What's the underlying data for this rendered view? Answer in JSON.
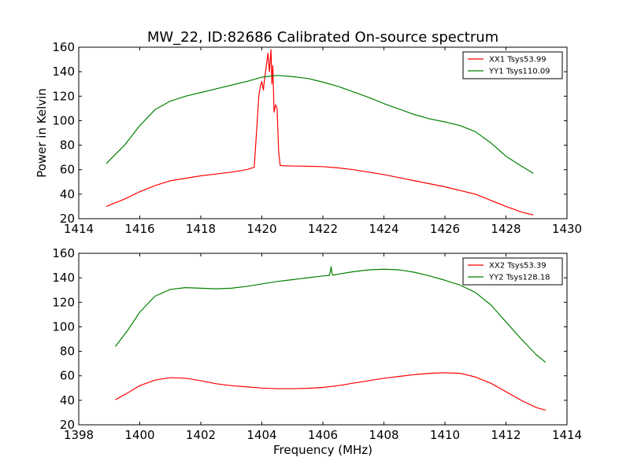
{
  "chart_data": [
    {
      "type": "line",
      "title": "MW_22, ID:82686 Calibrated On-source spectrum",
      "xlabel": "",
      "ylabel": "Power in Kelvin",
      "xlim": [
        1414,
        1430
      ],
      "ylim": [
        20,
        160
      ],
      "xticks": [
        1414,
        1416,
        1418,
        1420,
        1422,
        1424,
        1426,
        1428,
        1430
      ],
      "yticks": [
        20,
        40,
        60,
        80,
        100,
        120,
        140,
        160
      ],
      "legend_position": "top-right",
      "series": [
        {
          "name": "XX1 Tsys53.99",
          "color": "#ff0000",
          "x": [
            1414.9,
            1415.5,
            1416.0,
            1416.5,
            1417.0,
            1417.5,
            1418.0,
            1418.5,
            1419.0,
            1419.5,
            1419.75,
            1419.85,
            1419.9,
            1419.95,
            1420.0,
            1420.05,
            1420.1,
            1420.15,
            1420.2,
            1420.25,
            1420.3,
            1420.33,
            1420.36,
            1420.4,
            1420.45,
            1420.5,
            1420.55,
            1420.6,
            1420.7,
            1421.0,
            1421.5,
            1422.0,
            1422.5,
            1423.0,
            1423.5,
            1424.0,
            1424.5,
            1425.0,
            1425.5,
            1426.0,
            1426.5,
            1427.0,
            1427.5,
            1428.0,
            1428.5,
            1428.9
          ],
          "y": [
            30,
            36,
            42,
            47,
            51,
            53,
            55,
            56.5,
            58,
            60,
            62,
            100,
            120,
            128,
            132,
            125,
            136,
            145,
            155,
            140,
            158,
            130,
            145,
            107,
            113,
            110,
            75,
            63.5,
            63.2,
            63,
            62.8,
            62.5,
            61.5,
            60,
            58,
            56,
            53.5,
            51,
            48.5,
            46,
            43,
            40,
            35,
            30,
            25.5,
            23
          ]
        },
        {
          "name": "YY1 Tsys110.09",
          "color": "#008000",
          "x": [
            1414.9,
            1415.5,
            1416.0,
            1416.5,
            1417.0,
            1417.5,
            1418.0,
            1418.5,
            1419.0,
            1419.5,
            1420.0,
            1420.5,
            1421.0,
            1421.5,
            1422.0,
            1422.5,
            1423.0,
            1423.5,
            1424.0,
            1424.5,
            1425.0,
            1425.5,
            1426.0,
            1426.5,
            1427.0,
            1427.5,
            1428.0,
            1428.5,
            1428.9
          ],
          "y": [
            65,
            80,
            96,
            109,
            116,
            120,
            123,
            126,
            129,
            132,
            135.5,
            137,
            136,
            134.5,
            131.5,
            128,
            123.5,
            119,
            114,
            109.5,
            105,
            101.5,
            99,
            96,
            91,
            82,
            71,
            63,
            57
          ]
        }
      ]
    },
    {
      "type": "line",
      "title": "",
      "xlabel": "Frequency (MHz)",
      "ylabel": "",
      "xlim": [
        1398,
        1414
      ],
      "ylim": [
        20,
        160
      ],
      "xticks": [
        1398,
        1400,
        1402,
        1404,
        1406,
        1408,
        1410,
        1412,
        1414
      ],
      "yticks": [
        20,
        40,
        60,
        80,
        100,
        120,
        140,
        160
      ],
      "legend_position": "top-right",
      "series": [
        {
          "name": "XX2 Tsys53.39",
          "color": "#ff0000",
          "x": [
            1399.2,
            1399.6,
            1400.0,
            1400.5,
            1401.0,
            1401.5,
            1402.0,
            1402.5,
            1403.0,
            1403.5,
            1404.0,
            1404.5,
            1405.0,
            1405.5,
            1406.0,
            1406.5,
            1407.0,
            1407.5,
            1408.0,
            1408.5,
            1409.0,
            1409.5,
            1410.0,
            1410.5,
            1411.0,
            1411.5,
            1412.0,
            1412.5,
            1413.0,
            1413.3
          ],
          "y": [
            40.5,
            46,
            52,
            56.5,
            58.5,
            58,
            56,
            53.5,
            52,
            51,
            50,
            49.5,
            49.5,
            49.8,
            50.5,
            52,
            54,
            56,
            58,
            59.5,
            61,
            62,
            62.5,
            62,
            59,
            54,
            47,
            40,
            34,
            32
          ]
        },
        {
          "name": "YY2 Tsys128.18",
          "color": "#008000",
          "x": [
            1399.2,
            1399.6,
            1400.0,
            1400.5,
            1401.0,
            1401.5,
            1402.0,
            1402.5,
            1403.0,
            1403.5,
            1404.0,
            1404.5,
            1405.0,
            1405.5,
            1406.0,
            1406.22,
            1406.27,
            1406.3,
            1406.33,
            1406.4,
            1406.5,
            1407.0,
            1407.5,
            1408.0,
            1408.5,
            1409.0,
            1409.5,
            1410.0,
            1410.5,
            1411.0,
            1411.5,
            1412.0,
            1412.5,
            1413.0,
            1413.3
          ],
          "y": [
            84,
            97,
            112,
            125,
            130.5,
            132,
            131.5,
            131,
            131.5,
            133,
            135,
            137,
            138.5,
            140,
            141.5,
            142,
            149,
            144,
            142,
            142.5,
            143,
            145,
            146.5,
            147,
            146.5,
            144.5,
            141.5,
            138,
            134,
            128,
            118,
            104,
            90,
            77,
            71
          ]
        }
      ]
    }
  ]
}
